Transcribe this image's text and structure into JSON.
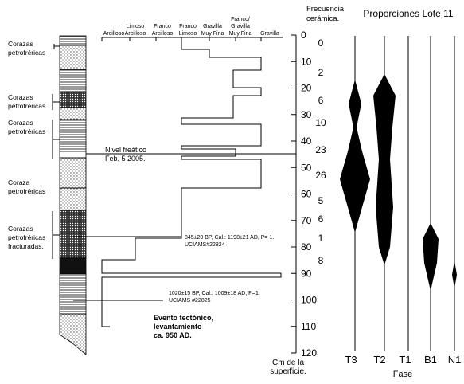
{
  "figure_title": "Proporciones Lote 11",
  "grain_classes": [
    [
      "Arcilloso"
    ],
    [
      "Limoso",
      "Arcilloso"
    ],
    [
      "Franco",
      "Arcilloso"
    ],
    [
      "Franco",
      "Limoso"
    ],
    [
      "Gravilla",
      "Muy Fina"
    ],
    [
      "Franco/",
      "Gravilla",
      "Muy Fina"
    ],
    [
      "Gravilla"
    ]
  ],
  "depth_axis": {
    "label": [
      "Cm de la",
      "superficie."
    ],
    "ticks": [
      0,
      10,
      20,
      30,
      40,
      50,
      60,
      70,
      80,
      90,
      100,
      110,
      120
    ]
  },
  "frequency": {
    "label": [
      "Frecuencia",
      "cerámica."
    ],
    "values": [
      0,
      2,
      6,
      10,
      23,
      26,
      5,
      6,
      1,
      8
    ]
  },
  "layer_labels": [
    [
      "Corazas",
      "petrofréricas"
    ],
    [
      "Corazas",
      "petrofréricas"
    ],
    [
      "Corazas",
      "petrofréricas"
    ],
    [
      "Coraza",
      "petrofréricas"
    ],
    [
      "Corazas",
      "petrofréricas",
      "fracturadas."
    ]
  ],
  "annotations": {
    "water_table": [
      "Nivel freático",
      "Feb. 5 2005."
    ],
    "date_1": [
      "845±20 BP,  Cal.: 1198±21 AD, P= 1.",
      "UCIAMS#22824"
    ],
    "date_2": [
      "1020±15 BP, Cal.: 1009±18 AD, P=1.",
      "UCIAMS #22825"
    ],
    "event": [
      "Evento tectónico,",
      "levantamiento",
      "ca. 950 AD."
    ]
  },
  "phases": [
    "T3",
    "T2",
    "T1",
    "B1",
    "N1"
  ],
  "phase_axis_label": "Fase"
}
